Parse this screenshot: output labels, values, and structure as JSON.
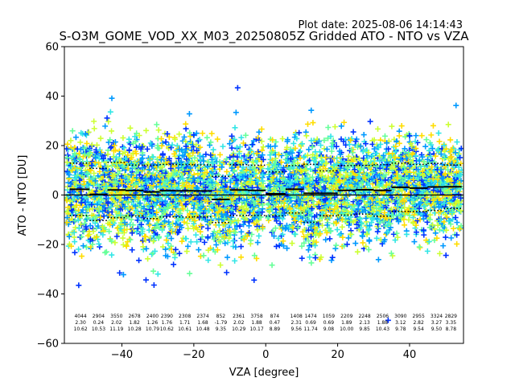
{
  "plot_date": "Plot date: 2025-08-06 14:14:43",
  "chart_data": {
    "type": "scatter",
    "title": "S-O3M_GOME_VOD_XX_M03_20250805Z Gridded ATO - NTO vs VZA",
    "xlabel": "VZA [degree]",
    "ylabel": "ATO - NTO [DU]",
    "xlim": [
      -56,
      55
    ],
    "ylim": [
      -60,
      60
    ],
    "xticks": [
      -40,
      -20,
      0,
      20,
      40
    ],
    "yticks": [
      -60,
      -40,
      -20,
      0,
      20,
      40,
      60
    ],
    "grid": false,
    "colormap": [
      "#0033ff",
      "#0099ff",
      "#33e6e6",
      "#66ff99",
      "#ccff33",
      "#ffdd00"
    ],
    "zero_line": 0,
    "bins": [
      {
        "x": -51.5,
        "count": 4044,
        "mean": 2.3,
        "std": 10.62
      },
      {
        "x": -46.5,
        "count": 2904,
        "mean": 0.24,
        "std": 10.53
      },
      {
        "x": -41.5,
        "count": 3550,
        "mean": 2.02,
        "std": 11.19
      },
      {
        "x": -36.5,
        "count": 2678,
        "mean": 1.82,
        "std": 10.28
      },
      {
        "x": -31.5,
        "count": 2400,
        "mean": 1.26,
        "std": 10.79
      },
      {
        "x": -27.5,
        "count": 2390,
        "mean": 1.76,
        "std": 10.62
      },
      {
        "x": -22.5,
        "count": 2308,
        "mean": 1.71,
        "std": 10.61
      },
      {
        "x": -17.5,
        "count": 2374,
        "mean": 1.68,
        "std": 10.48
      },
      {
        "x": -12.5,
        "count": 852,
        "mean": -1.79,
        "std": 9.35
      },
      {
        "x": -7.5,
        "count": 2361,
        "mean": 2.02,
        "std": 10.29
      },
      {
        "x": -2.5,
        "count": 3758,
        "mean": 1.88,
        "std": 10.17
      },
      {
        "x": 2.5,
        "count": 874,
        "mean": 0.47,
        "std": 8.89
      },
      {
        "x": 8.5,
        "count": 1408,
        "mean": 2.31,
        "std": 9.56
      },
      {
        "x": 12.5,
        "count": 1474,
        "mean": 0.69,
        "std": 11.74
      },
      {
        "x": 17.5,
        "count": 1059,
        "mean": 0.69,
        "std": 9.08
      },
      {
        "x": 22.5,
        "count": 2209,
        "mean": 1.89,
        "std": 10.0
      },
      {
        "x": 27.5,
        "count": 2248,
        "mean": 2.13,
        "std": 9.85
      },
      {
        "x": 32.5,
        "count": 2506,
        "mean": 1.88,
        "std": 10.43
      },
      {
        "x": 37.5,
        "count": 3090,
        "mean": 3.12,
        "std": 9.78
      },
      {
        "x": 42.5,
        "count": 2955,
        "mean": 2.82,
        "std": 9.54
      },
      {
        "x": 47.5,
        "count": 3324,
        "mean": 3.27,
        "std": 9.5
      },
      {
        "x": 51.5,
        "count": 2829,
        "mean": 3.35,
        "std": 8.78
      }
    ]
  }
}
